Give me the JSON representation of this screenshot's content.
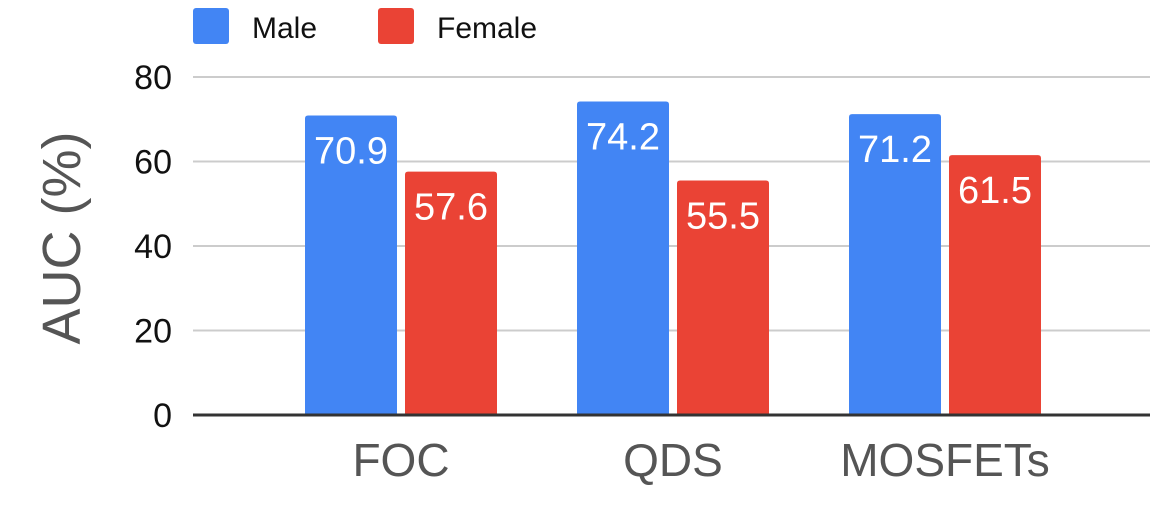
{
  "chart_data": {
    "type": "bar",
    "title": "",
    "xlabel": "",
    "ylabel": "AUC (%)",
    "ylim": [
      0,
      80
    ],
    "yticks": [
      0,
      20,
      40,
      60,
      80
    ],
    "categories": [
      "FOC",
      "QDS",
      "MOSFETs"
    ],
    "series": [
      {
        "name": "Male",
        "color": "#4285F4",
        "values": [
          70.9,
          74.2,
          71.2
        ]
      },
      {
        "name": "Female",
        "color": "#EA4335",
        "values": [
          57.6,
          55.5,
          61.5
        ]
      }
    ],
    "data_labels": [
      [
        "70.9",
        "74.2",
        "71.2"
      ],
      [
        "57.6",
        "55.5",
        "61.5"
      ]
    ],
    "legend_position": "top-left",
    "grid": true
  }
}
